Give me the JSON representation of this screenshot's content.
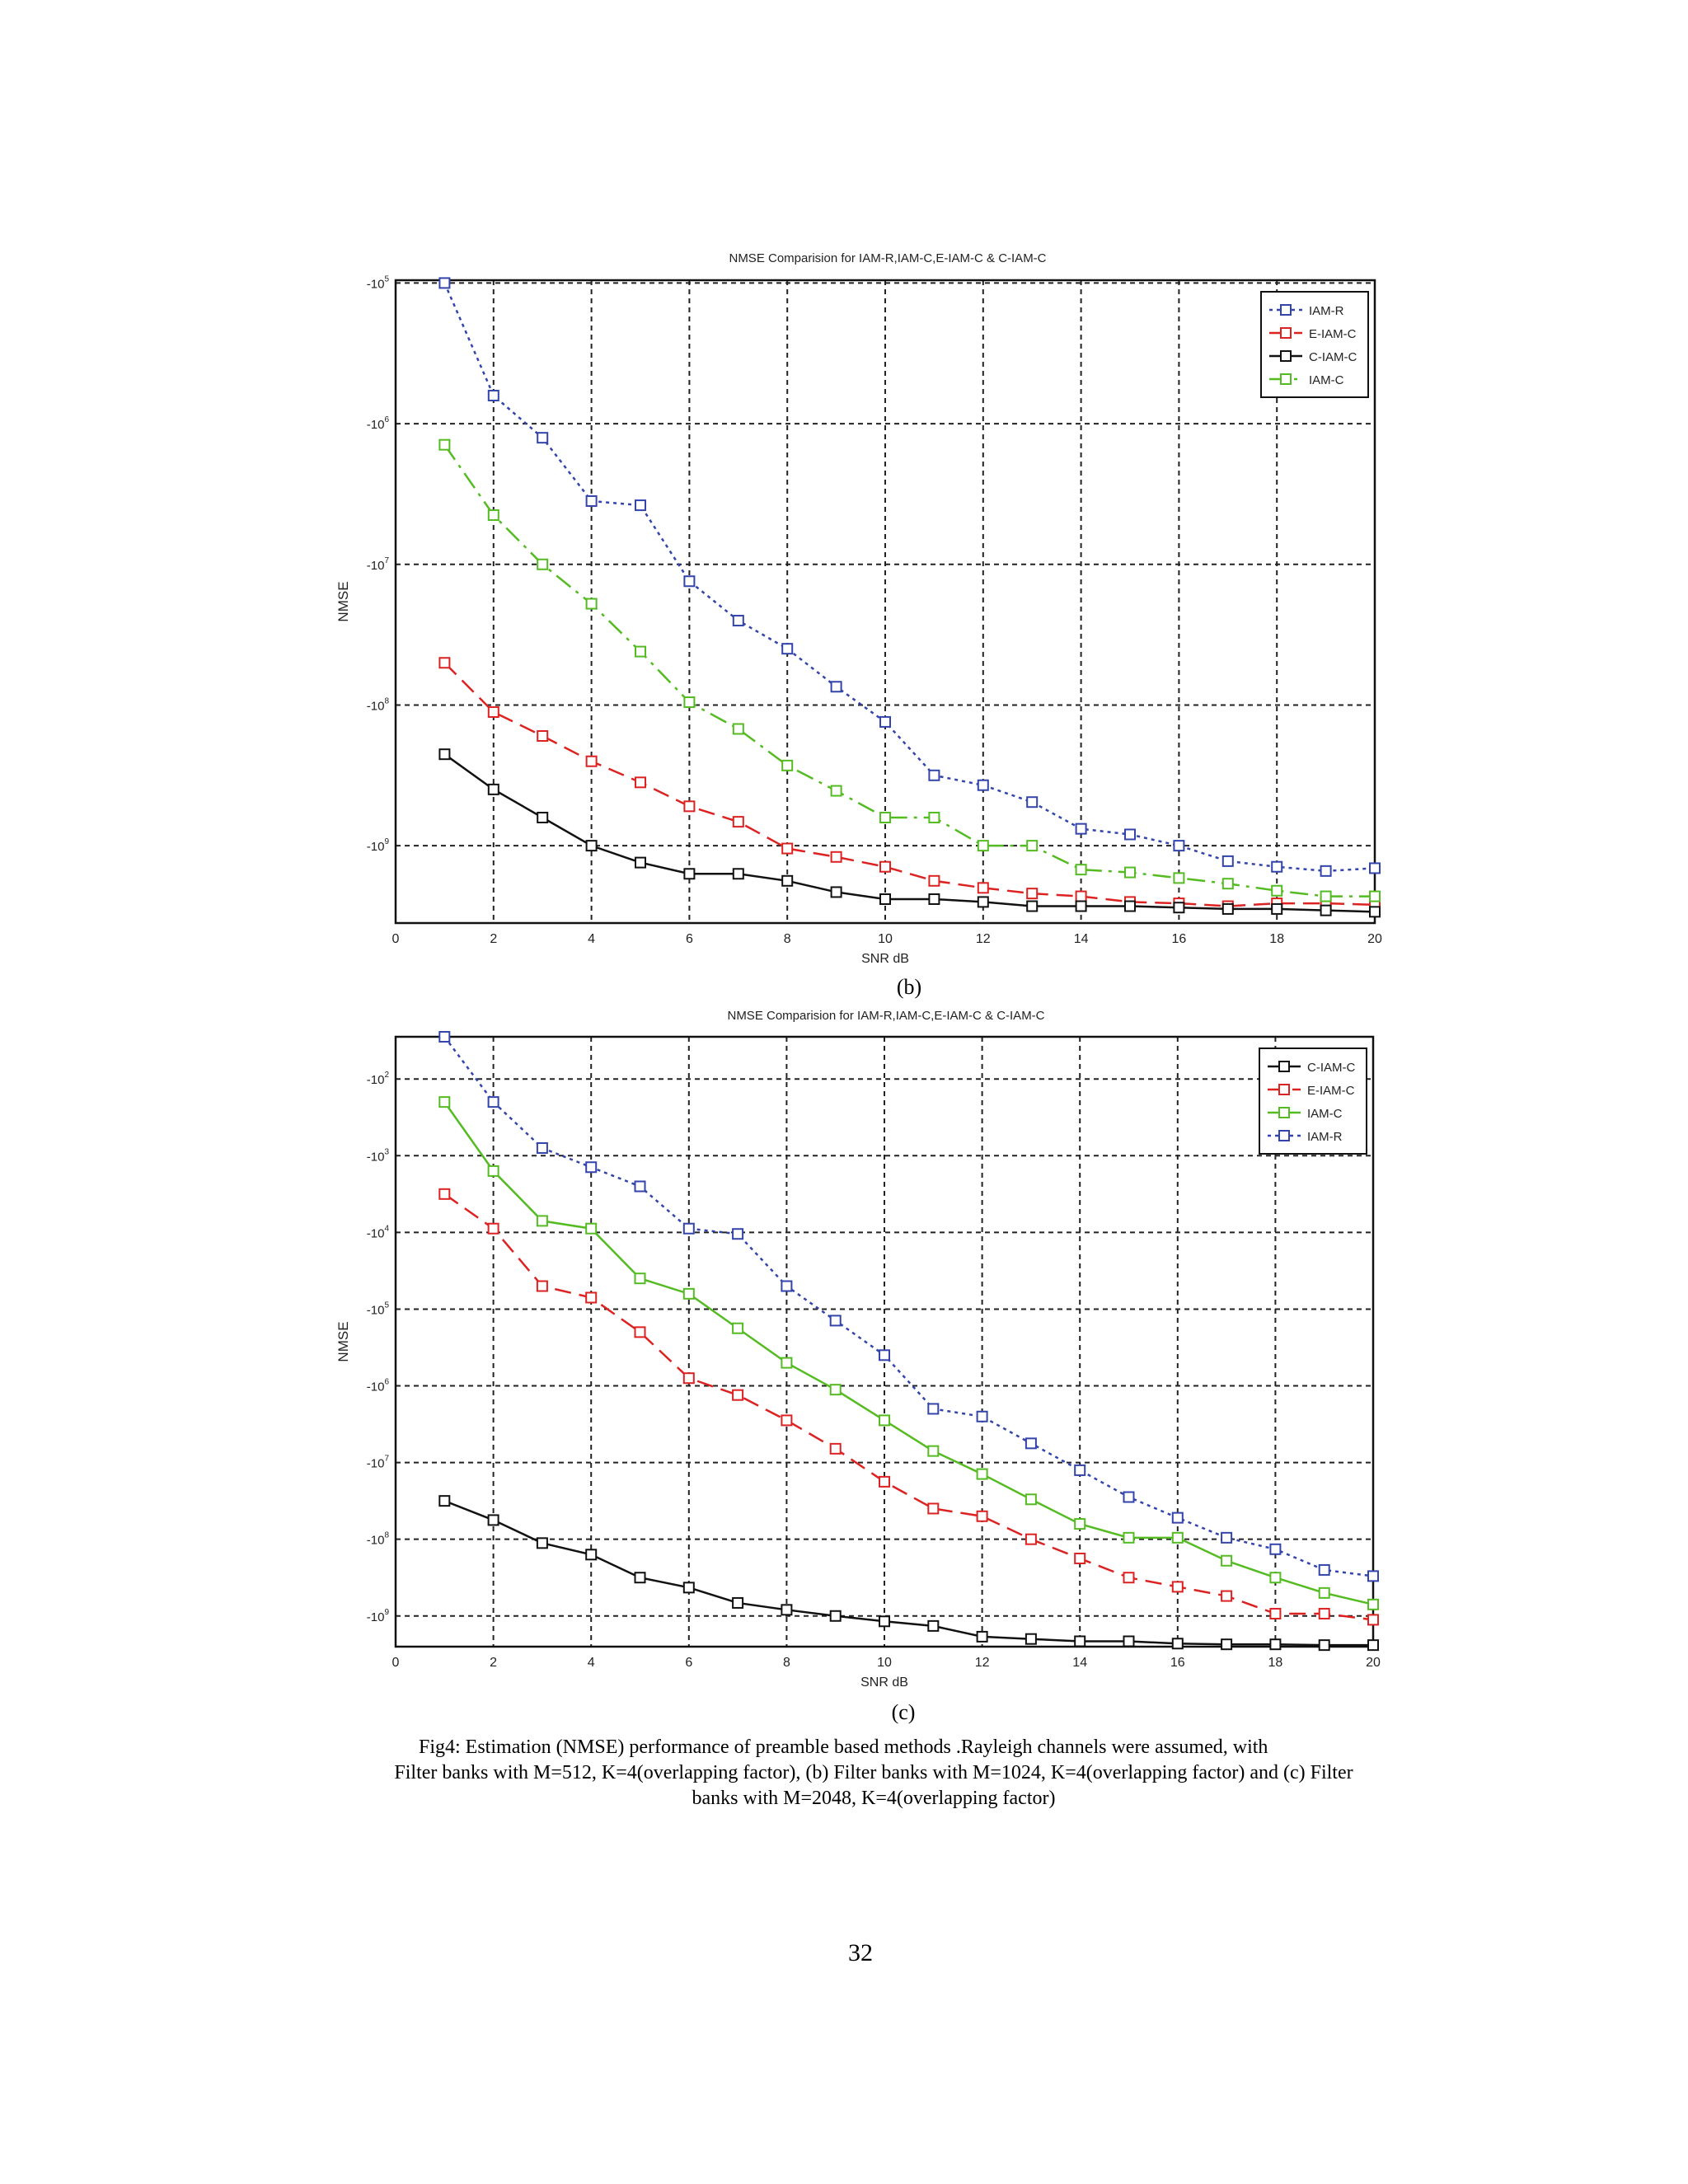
{
  "figure_b": {
    "sublabel": "(b)"
  },
  "figure_c": {
    "sublabel": "(c)"
  },
  "caption": {
    "line1": "Fig4: Estimation (NMSE) performance of preamble based methods .Rayleigh channels were assumed, with",
    "line2": "Filter banks with M=512, K=4(overlapping factor), (b) Filter banks with M=1024, K=4(overlapping factor) and (c) Filter",
    "line3": "banks with M=2048, K=4(overlapping factor)"
  },
  "page_number": "32",
  "chart_data": [
    {
      "type": "line",
      "id": "b",
      "title": "NMSE Comparision for IAM-R,IAM-C,E-IAM-C & C-IAM-C",
      "xlabel": "SNR dB",
      "ylabel": "NMSE",
      "xlim": [
        0,
        20
      ],
      "ylim": [
        -9.55,
        -4.98
      ],
      "y_log_scale": true,
      "xticks": [
        0,
        2,
        4,
        6,
        8,
        10,
        12,
        14,
        16,
        18,
        20
      ],
      "yticks": [
        {
          "value": -5,
          "label": "-10^5"
        },
        {
          "value": -6,
          "label": "-10^6"
        },
        {
          "value": -7,
          "label": "-10^7"
        },
        {
          "value": -8,
          "label": "-10^8"
        },
        {
          "value": -9,
          "label": "-10^9"
        }
      ],
      "grid": true,
      "legend_position": "top-right",
      "x": [
        1,
        2,
        3,
        4,
        5,
        6,
        7,
        8,
        9,
        10,
        11,
        12,
        13,
        14,
        15,
        16,
        17,
        18,
        19,
        20
      ],
      "series": [
        {
          "name": "IAM-R",
          "color": "#3344aa",
          "dash": "4,5",
          "values": [
            -5.0,
            -5.8,
            -6.1,
            -6.55,
            -6.58,
            -7.12,
            -7.4,
            -7.6,
            -7.87,
            -8.12,
            -8.5,
            -8.57,
            -8.69,
            -8.88,
            -8.92,
            -9.0,
            -9.11,
            -9.15,
            -9.18,
            -9.16
          ]
        },
        {
          "name": "E-IAM-C",
          "color": "#dd2222",
          "dash": "20,10",
          "values": [
            -7.7,
            -8.05,
            -8.22,
            -8.4,
            -8.55,
            -8.72,
            -8.83,
            -9.02,
            -9.08,
            -9.15,
            -9.25,
            -9.3,
            -9.34,
            -9.36,
            -9.4,
            -9.41,
            -9.43,
            -9.41,
            -9.41,
            -9.42
          ]
        },
        {
          "name": "C-IAM-C",
          "color": "#111111",
          "dash": "",
          "values": [
            -8.35,
            -8.6,
            -8.8,
            -9.0,
            -9.12,
            -9.2,
            -9.2,
            -9.25,
            -9.33,
            -9.38,
            -9.38,
            -9.4,
            -9.43,
            -9.43,
            -9.43,
            -9.44,
            -9.45,
            -9.45,
            -9.46,
            -9.47
          ]
        },
        {
          "name": "IAM-C",
          "color": "#55bb22",
          "dash": "22,8,4,8",
          "values": [
            -6.15,
            -6.65,
            -7.0,
            -7.28,
            -7.62,
            -7.98,
            -8.17,
            -8.43,
            -8.61,
            -8.8,
            -8.8,
            -9.0,
            -9.0,
            -9.17,
            -9.19,
            -9.23,
            -9.27,
            -9.32,
            -9.36,
            -9.36
          ]
        }
      ]
    },
    {
      "type": "line",
      "id": "c",
      "title": "NMSE Comparision for IAM-R,IAM-C,E-IAM-C & C-IAM-C",
      "xlabel": "SNR dB",
      "ylabel": "NMSE",
      "xlim": [
        0,
        20
      ],
      "ylim": [
        -9.4,
        -1.45
      ],
      "y_log_scale": true,
      "xticks": [
        0,
        2,
        4,
        6,
        8,
        10,
        12,
        14,
        16,
        18,
        20
      ],
      "yticks": [
        {
          "value": -2,
          "label": "-10^2"
        },
        {
          "value": -3,
          "label": "-10^3"
        },
        {
          "value": -4,
          "label": "-10^4"
        },
        {
          "value": -5,
          "label": "-10^5"
        },
        {
          "value": -6,
          "label": "-10^6"
        },
        {
          "value": -7,
          "label": "-10^7"
        },
        {
          "value": -8,
          "label": "-10^8"
        },
        {
          "value": -9,
          "label": "-10^9"
        }
      ],
      "grid": true,
      "legend_position": "top-right",
      "x": [
        1,
        2,
        3,
        4,
        5,
        6,
        7,
        8,
        9,
        10,
        11,
        12,
        13,
        14,
        15,
        16,
        17,
        18,
        19,
        20
      ],
      "series": [
        {
          "name": "C-IAM-C",
          "color": "#111111",
          "dash": "",
          "values": [
            -7.5,
            -7.75,
            -8.05,
            -8.2,
            -8.5,
            -8.63,
            -8.83,
            -8.92,
            -9.0,
            -9.07,
            -9.13,
            -9.27,
            -9.3,
            -9.33,
            -9.33,
            -9.36,
            -9.37,
            -9.37,
            -9.38,
            -9.38
          ]
        },
        {
          "name": "E-IAM-C",
          "color": "#dd2222",
          "dash": "20,10",
          "values": [
            -3.5,
            -3.95,
            -4.7,
            -4.85,
            -5.3,
            -5.9,
            -6.12,
            -6.45,
            -6.82,
            -7.25,
            -7.6,
            -7.7,
            -8.0,
            -8.25,
            -8.5,
            -8.62,
            -8.74,
            -8.97,
            -8.97,
            -9.05
          ]
        },
        {
          "name": "IAM-C",
          "color": "#55bb22",
          "dash": "",
          "values": [
            -2.3,
            -3.2,
            -3.85,
            -3.95,
            -4.6,
            -4.8,
            -5.25,
            -5.7,
            -6.05,
            -6.45,
            -6.85,
            -7.15,
            -7.48,
            -7.8,
            -7.98,
            -7.98,
            -8.28,
            -8.5,
            -8.7,
            -8.85
          ]
        },
        {
          "name": "IAM-R",
          "color": "#3344aa",
          "dash": "4,5",
          "values": [
            -1.45,
            -2.3,
            -2.9,
            -3.15,
            -3.4,
            -3.95,
            -4.02,
            -4.7,
            -5.15,
            -5.6,
            -6.3,
            -6.4,
            -6.75,
            -7.1,
            -7.45,
            -7.72,
            -7.98,
            -8.13,
            -8.4,
            -8.48
          ]
        }
      ]
    }
  ]
}
